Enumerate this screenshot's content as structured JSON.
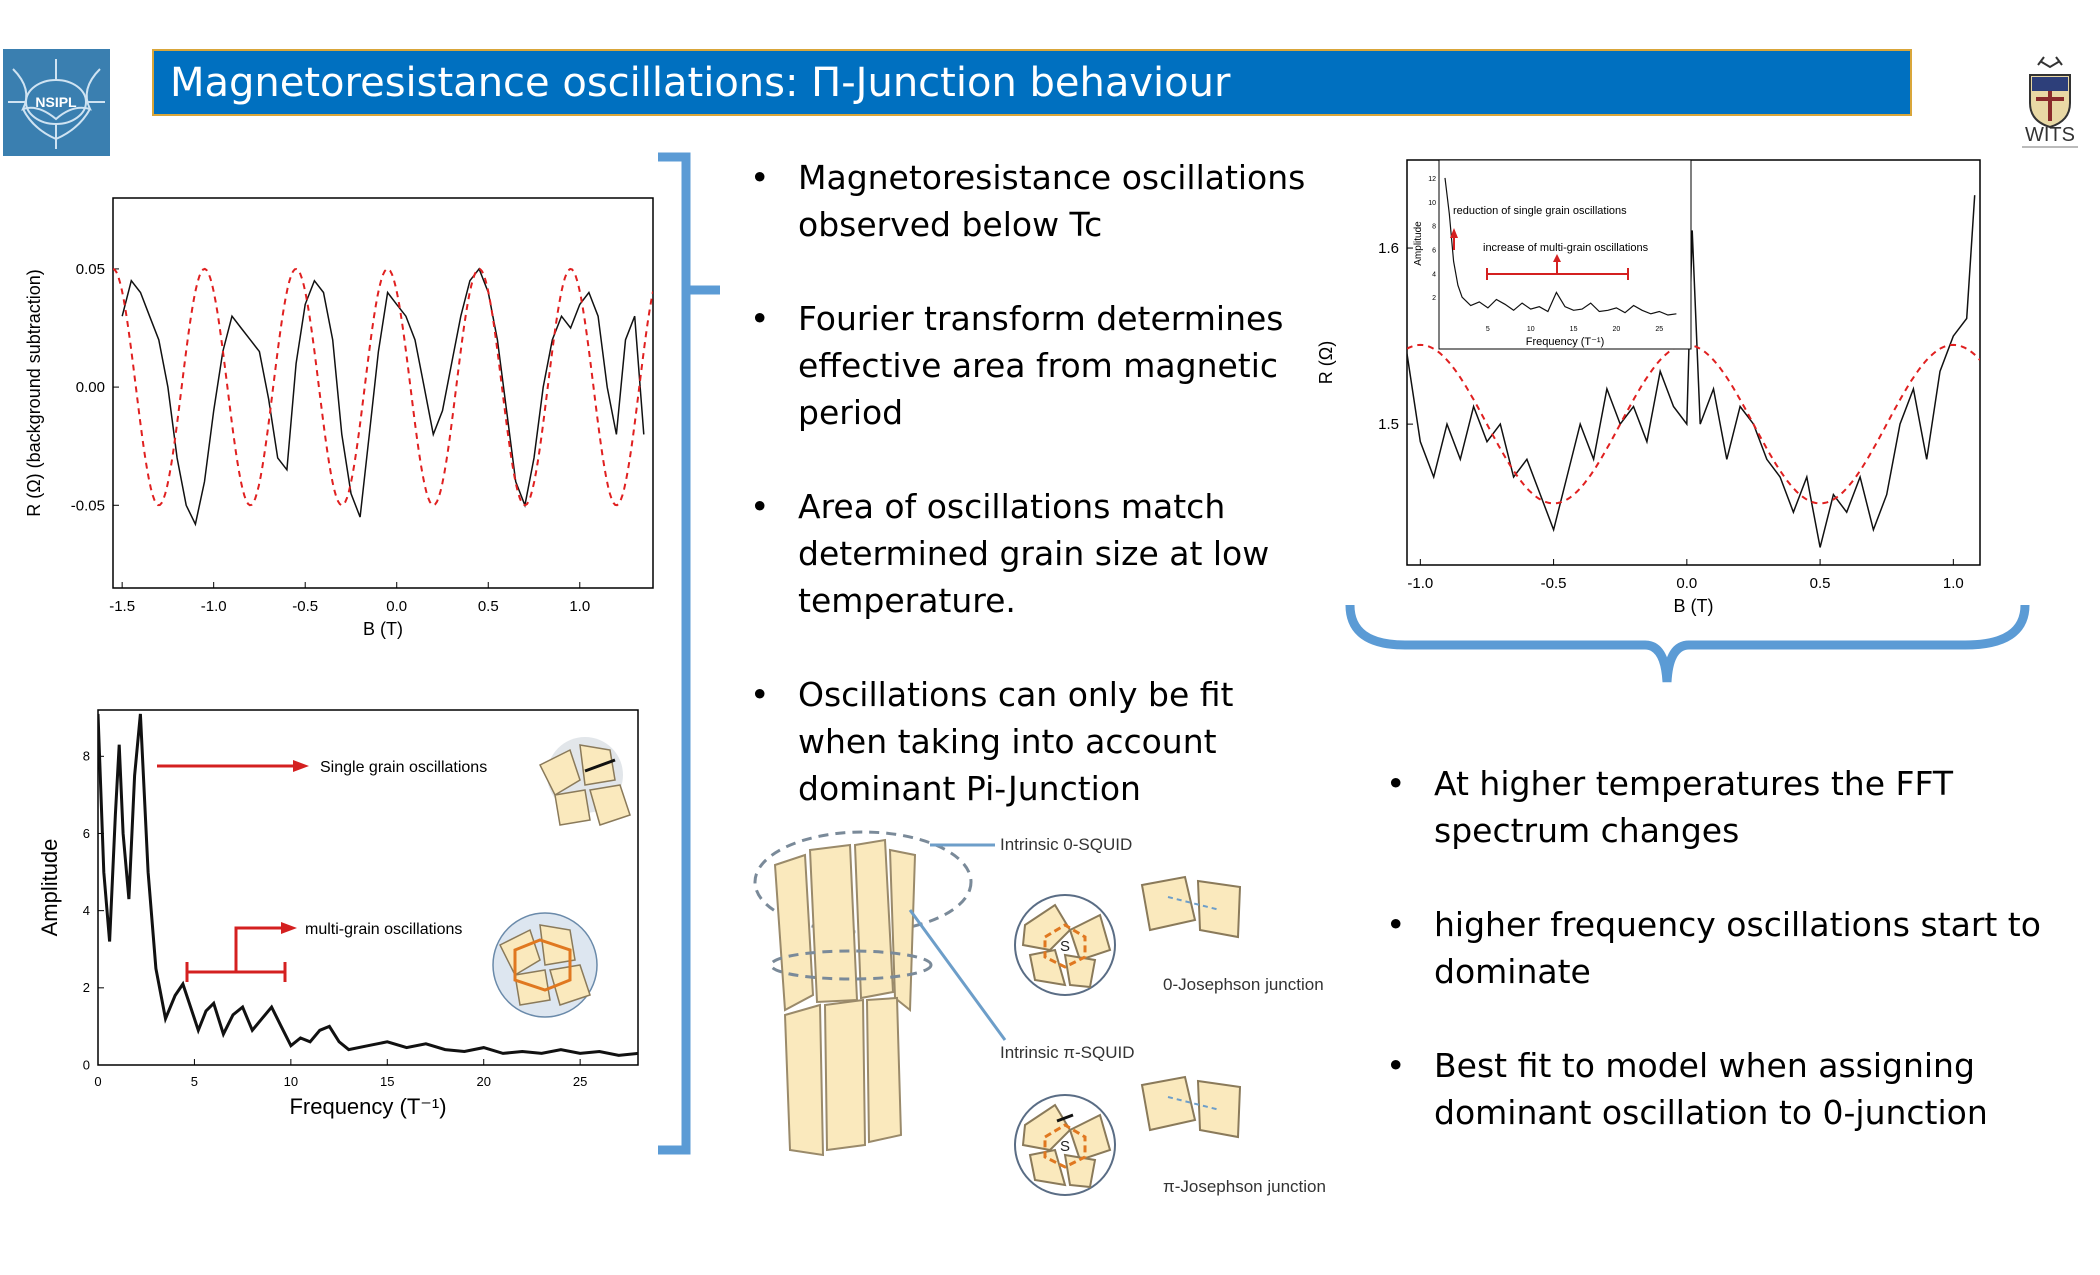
{
  "title": "Magnetoresistance oscillations:  Π-Junction behaviour",
  "logos": {
    "left_text": "NSIPL",
    "left_icon": "nsipl-logo-icon",
    "right_text": "WITS",
    "right_icon": "wits-crest-icon"
  },
  "bullets_middle": [
    "Magnetoresistance oscillations observed below Tc",
    "Fourier transform determines effective area from magnetic period",
    "Area of oscillations match determined grain size at low temperature.",
    "Oscillations can only be fit when taking into account dominant Pi-Junction"
  ],
  "bullets_right": [
    "At higher temperatures the FFT spectrum changes",
    "higher frequency oscillations start to dominate",
    "Best fit to model when assigning dominant oscillation to 0-junction"
  ],
  "colors": {
    "title_bg": "#0070c0",
    "title_border": "#d9a63a",
    "bracket": "#5b9bd5",
    "fit_line": "#e02020",
    "arrow": "#d42020"
  },
  "chart_data": [
    {
      "type": "line",
      "xlabel": "B (T)",
      "ylabel": "R (Ω) (background subtraction)",
      "xlim": [
        -1.55,
        1.4
      ],
      "ylim": [
        -0.085,
        0.08
      ],
      "xticks": [
        -1.5,
        -1.0,
        -0.5,
        0.0,
        0.5,
        1.0
      ],
      "xtick_labels": [
        "-1.5",
        "-1.0",
        "-0.5",
        "0.0",
        "0.5",
        "1.0"
      ],
      "yticks": [
        0.05,
        0.0,
        -0.05
      ],
      "ytick_labels": [
        "0.05",
        "0.00",
        "-0.05"
      ],
      "series": [
        {
          "style": "solid-black",
          "x": [
            -1.5,
            -1.45,
            -1.4,
            -1.35,
            -1.3,
            -1.25,
            -1.2,
            -1.15,
            -1.1,
            -1.05,
            -1.0,
            -0.95,
            -0.9,
            -0.85,
            -0.8,
            -0.75,
            -0.7,
            -0.65,
            -0.6,
            -0.55,
            -0.5,
            -0.45,
            -0.4,
            -0.35,
            -0.3,
            -0.25,
            -0.2,
            -0.15,
            -0.1,
            -0.05,
            0.0,
            0.05,
            0.1,
            0.15,
            0.2,
            0.25,
            0.3,
            0.35,
            0.4,
            0.45,
            0.5,
            0.55,
            0.6,
            0.65,
            0.7,
            0.75,
            0.8,
            0.85,
            0.9,
            0.95,
            1.0,
            1.05,
            1.1,
            1.15,
            1.2,
            1.25,
            1.3,
            1.35
          ],
          "y": [
            0.03,
            0.045,
            0.04,
            0.03,
            0.02,
            0.0,
            -0.03,
            -0.05,
            -0.058,
            -0.04,
            -0.01,
            0.015,
            0.03,
            0.025,
            0.02,
            0.015,
            -0.005,
            -0.03,
            -0.035,
            0.01,
            0.035,
            0.045,
            0.04,
            0.02,
            -0.02,
            -0.045,
            -0.055,
            -0.02,
            0.015,
            0.04,
            0.035,
            0.03,
            0.02,
            0.0,
            -0.02,
            -0.01,
            0.01,
            0.03,
            0.045,
            0.05,
            0.04,
            0.02,
            -0.01,
            -0.04,
            -0.05,
            -0.03,
            0.0,
            0.02,
            0.03,
            0.025,
            0.035,
            0.04,
            0.03,
            0.0,
            -0.02,
            0.02,
            0.03,
            -0.02
          ]
        },
        {
          "style": "dashed-red",
          "function": "0.05*cos(2*pi*(x-0.45)/0.5)",
          "x_range": [
            -1.55,
            1.4
          ]
        }
      ]
    },
    {
      "type": "line",
      "xlabel": "Frequency (T⁻¹)",
      "ylabel": "Amplitude",
      "xlim": [
        0,
        28
      ],
      "ylim": [
        0,
        9.2
      ],
      "xticks": [
        0,
        5,
        10,
        15,
        20,
        25
      ],
      "xtick_labels": [
        "0",
        "5",
        "10",
        "15",
        "20",
        "25"
      ],
      "yticks": [
        0,
        2,
        4,
        6,
        8
      ],
      "ytick_labels": [
        "0",
        "2",
        "4",
        "6",
        "8"
      ],
      "annotations": [
        "Single grain oscillations",
        "multi-grain oscillations"
      ],
      "x": [
        0,
        0.3,
        0.6,
        0.9,
        1.1,
        1.3,
        1.6,
        1.9,
        2.2,
        2.6,
        3.0,
        3.5,
        4.0,
        4.4,
        4.8,
        5.2,
        5.6,
        6.0,
        6.5,
        7.0,
        7.5,
        8.0,
        8.5,
        9.0,
        9.5,
        10.0,
        10.5,
        11.0,
        11.5,
        12.0,
        12.5,
        13.0,
        14.0,
        15.0,
        16.0,
        17.0,
        18.0,
        19.0,
        20.0,
        21.0,
        22.0,
        23.0,
        24.0,
        25.0,
        26.0,
        27.0,
        28.0
      ],
      "y": [
        9.1,
        5.0,
        3.2,
        6.5,
        8.3,
        6.0,
        4.3,
        7.5,
        9.1,
        5.0,
        2.5,
        1.2,
        1.8,
        2.1,
        1.5,
        0.9,
        1.4,
        1.6,
        0.8,
        1.3,
        1.5,
        0.9,
        1.2,
        1.5,
        1.0,
        0.5,
        0.7,
        0.6,
        0.9,
        1.0,
        0.6,
        0.4,
        0.5,
        0.6,
        0.45,
        0.55,
        0.4,
        0.35,
        0.45,
        0.3,
        0.35,
        0.3,
        0.4,
        0.3,
        0.35,
        0.25,
        0.3
      ]
    },
    {
      "type": "line",
      "xlabel": "B (T)",
      "ylabel": "R (Ω)",
      "xlim": [
        -1.05,
        1.1
      ],
      "ylim": [
        1.42,
        1.65
      ],
      "xticks": [
        -1.0,
        -0.5,
        0.0,
        0.5,
        1.0
      ],
      "xtick_labels": [
        "-1.0",
        "-0.5",
        "0.0",
        "0.5",
        "1.0"
      ],
      "yticks": [
        1.6,
        1.5
      ],
      "ytick_labels": [
        "1.6",
        "1.5"
      ],
      "series": [
        {
          "style": "solid-black",
          "x": [
            -1.05,
            -1.0,
            -0.95,
            -0.9,
            -0.85,
            -0.8,
            -0.75,
            -0.7,
            -0.65,
            -0.6,
            -0.55,
            -0.5,
            -0.45,
            -0.4,
            -0.35,
            -0.3,
            -0.25,
            -0.2,
            -0.15,
            -0.1,
            -0.05,
            0.0,
            0.02,
            0.05,
            0.1,
            0.15,
            0.2,
            0.25,
            0.3,
            0.35,
            0.4,
            0.45,
            0.5,
            0.55,
            0.6,
            0.65,
            0.7,
            0.75,
            0.8,
            0.85,
            0.9,
            0.95,
            1.0,
            1.05,
            1.08
          ],
          "y": [
            1.54,
            1.49,
            1.47,
            1.5,
            1.48,
            1.51,
            1.49,
            1.5,
            1.47,
            1.48,
            1.46,
            1.44,
            1.47,
            1.5,
            1.48,
            1.52,
            1.5,
            1.51,
            1.49,
            1.53,
            1.51,
            1.5,
            1.61,
            1.5,
            1.52,
            1.48,
            1.51,
            1.5,
            1.48,
            1.47,
            1.45,
            1.47,
            1.43,
            1.46,
            1.45,
            1.47,
            1.44,
            1.46,
            1.5,
            1.52,
            1.48,
            1.53,
            1.55,
            1.56,
            1.63
          ]
        },
        {
          "style": "dashed-red",
          "function": "1.5 + 0.045*cos(2*pi*x/1.0)",
          "x_range": [
            -1.05,
            1.1
          ]
        }
      ],
      "inset": {
        "xlabel": "Frequency (T⁻¹)",
        "ylabel": "Amplitude",
        "yticks": [
          2,
          4,
          6,
          8,
          10,
          12
        ],
        "xticks": [
          5,
          10,
          15,
          20,
          25
        ],
        "annotations": [
          "reduction of single grain oscillations",
          "increase of multi-grain oscillations"
        ],
        "x": [
          0,
          0.5,
          1.0,
          1.5,
          2.0,
          3.0,
          4.0,
          5.0,
          6.0,
          7.0,
          8.0,
          9.0,
          10.0,
          11.0,
          12.0,
          13.0,
          14.0,
          15.0,
          16.0,
          17.0,
          18.0,
          19.0,
          20.0,
          21.0,
          22.0,
          23.0,
          24.0,
          25.0,
          26.0,
          27.0
        ],
        "y": [
          12,
          9,
          5,
          3,
          2.0,
          1.3,
          1.6,
          1.1,
          1.8,
          1.4,
          0.9,
          1.5,
          1.0,
          1.2,
          0.8,
          2.4,
          1.2,
          0.9,
          1.0,
          1.5,
          0.8,
          0.9,
          1.1,
          0.7,
          1.3,
          0.9,
          0.6,
          0.8,
          0.5,
          0.6
        ]
      }
    }
  ],
  "diagram": {
    "labels": [
      "Intrinsic 0-SQUID",
      "0-Josephson junction",
      "Intrinsic π-SQUID",
      "π-Josephson junction",
      "S"
    ]
  }
}
